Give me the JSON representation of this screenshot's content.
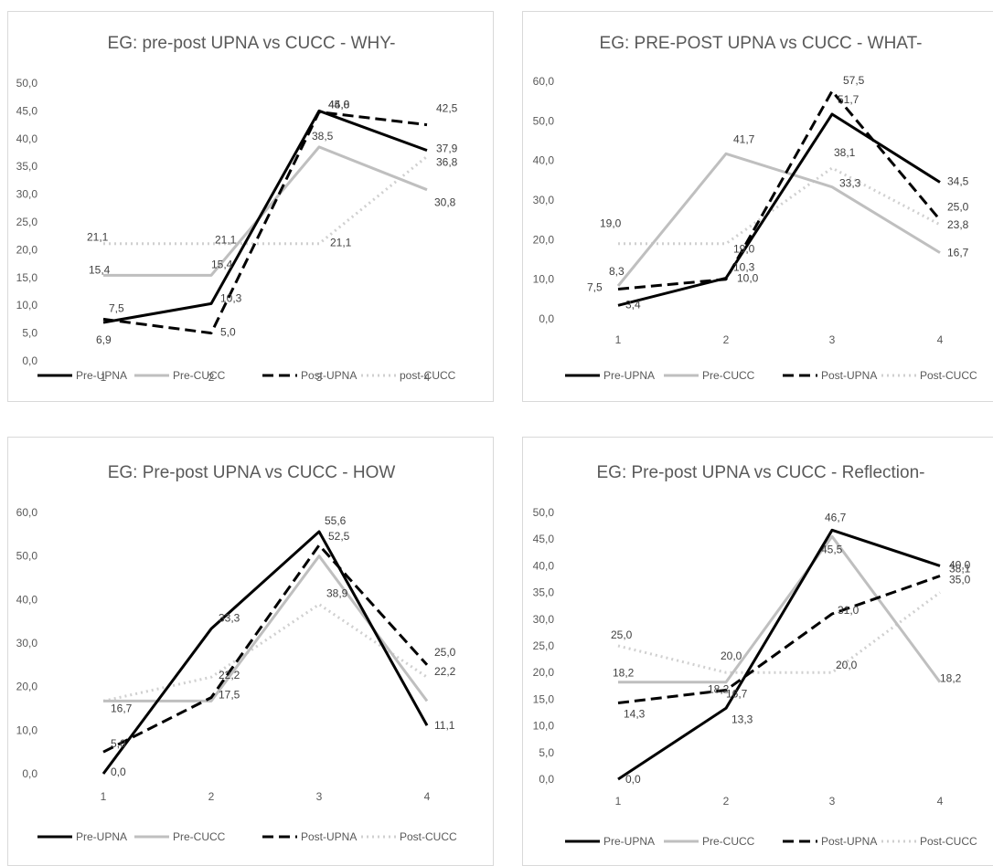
{
  "series_style": {
    "Pre-UPNA": {
      "color": "#000000",
      "dash": ""
    },
    "Pre-CUCC": {
      "color": "#bfbfbf",
      "dash": ""
    },
    "Post-UPNA": {
      "color": "#000000",
      "dash": "12 6"
    },
    "post-CUCC": {
      "color": "#d0d0d0",
      "dash": "2 4"
    },
    "Post-CUCC": {
      "color": "#d0d0d0",
      "dash": "2 4"
    }
  },
  "chart_data": [
    {
      "type": "line",
      "title": "EG: pre-post UPNA vs CUCC - WHY-",
      "categories": [
        "1",
        "2",
        "3",
        "4"
      ],
      "yticks": [
        "0,0",
        "5,0",
        "10,0",
        "15,0",
        "20,0",
        "25,0",
        "30,0",
        "35,0",
        "40,0",
        "45,0",
        "50,0"
      ],
      "ylim": [
        0,
        50
      ],
      "grid": false,
      "legend": "bottom",
      "series": [
        {
          "name": "Pre-UPNA",
          "values": [
            6.9,
            10.3,
            45.0,
            37.9
          ],
          "labels": [
            "6,9",
            "10,3",
            "45,0",
            "37,9"
          ]
        },
        {
          "name": "Pre-CUCC",
          "values": [
            15.4,
            15.4,
            38.5,
            30.8
          ],
          "labels": [
            "15,4",
            "15,4",
            "38,5",
            "30,8"
          ]
        },
        {
          "name": "Post-UPNA",
          "values": [
            7.5,
            5.0,
            44.8,
            42.5
          ],
          "labels": [
            "7,5",
            "5,0",
            "44,8",
            "42,5"
          ]
        },
        {
          "name": "post-CUCC",
          "values": [
            21.1,
            21.1,
            21.1,
            36.8
          ],
          "labels": [
            "21,1",
            "21,1",
            "21,1",
            "36,8"
          ]
        }
      ]
    },
    {
      "type": "line",
      "title": "EG: PRE-POST UPNA vs CUCC - WHAT-",
      "categories": [
        "1",
        "2",
        "3",
        "4"
      ],
      "yticks": [
        "0,0",
        "10,0",
        "20,0",
        "30,0",
        "40,0",
        "50,0",
        "60,0"
      ],
      "ylim": [
        0,
        60
      ],
      "grid": false,
      "legend": "bottom",
      "series": [
        {
          "name": "Pre-UPNA",
          "values": [
            3.4,
            10.3,
            51.7,
            34.5
          ],
          "labels": [
            "3,4",
            "10,3",
            "51,7",
            "34,5"
          ]
        },
        {
          "name": "Pre-CUCC",
          "values": [
            8.3,
            41.7,
            33.3,
            16.7
          ],
          "labels": [
            "8,3",
            "41,7",
            "33,3",
            "16,7"
          ]
        },
        {
          "name": "Post-UPNA",
          "values": [
            7.5,
            10.0,
            57.5,
            25.0
          ],
          "labels": [
            "7,5",
            "10,0",
            "57,5",
            "25,0"
          ]
        },
        {
          "name": "Post-CUCC",
          "values": [
            19.0,
            19.0,
            38.1,
            23.8
          ],
          "labels": [
            "19,0",
            "19,0",
            "38,1",
            "23,8"
          ]
        }
      ]
    },
    {
      "type": "line",
      "title": "EG: Pre-post UPNA vs CUCC  - HOW",
      "categories": [
        "1",
        "2",
        "3",
        "4"
      ],
      "yticks": [
        "0,0",
        "10,0",
        "20,0",
        "30,0",
        "40,0",
        "50,0",
        "60,0"
      ],
      "ylim": [
        0,
        60
      ],
      "grid": false,
      "legend": "bottom",
      "series": [
        {
          "name": "Pre-UPNA",
          "values": [
            0.0,
            33.3,
            55.6,
            11.1
          ],
          "labels": [
            "0,0",
            "33,3",
            "55,6",
            "11,1"
          ]
        },
        {
          "name": "Pre-CUCC",
          "values": [
            16.7,
            16.7,
            50.0,
            16.7
          ],
          "labels": [
            "16,7",
            "",
            "",
            ""
          ]
        },
        {
          "name": "Post-UPNA",
          "values": [
            5.0,
            17.5,
            52.5,
            25.0
          ],
          "labels": [
            "5,0",
            "17,5",
            "52,5",
            "25,0"
          ]
        },
        {
          "name": "Post-CUCC",
          "values": [
            16.7,
            22.2,
            38.9,
            22.2
          ],
          "labels": [
            "",
            "22,2",
            "38,9",
            "22,2"
          ]
        }
      ]
    },
    {
      "type": "line",
      "title": "EG: Pre-post UPNA vs CUCC - Reflection-",
      "categories": [
        "1",
        "2",
        "3",
        "4"
      ],
      "yticks": [
        "0,0",
        "5,0",
        "10,0",
        "15,0",
        "20,0",
        "25,0",
        "30,0",
        "35,0",
        "40,0",
        "45,0",
        "50,0"
      ],
      "ylim": [
        0,
        50
      ],
      "grid": false,
      "legend": "bottom",
      "series": [
        {
          "name": "Pre-UPNA",
          "values": [
            0.0,
            13.3,
            46.7,
            40.0
          ],
          "labels": [
            "0,0",
            "13,3",
            "46,7",
            "40,0"
          ]
        },
        {
          "name": "Pre-CUCC",
          "values": [
            18.2,
            18.2,
            45.5,
            18.2
          ],
          "labels": [
            "18,2",
            "18,2",
            "45,5",
            "18,2"
          ]
        },
        {
          "name": "Post-UPNA",
          "values": [
            14.3,
            16.7,
            31.0,
            38.1
          ],
          "labels": [
            "14,3",
            "16,7",
            "31,0",
            "38,1"
          ]
        },
        {
          "name": "Post-CUCC",
          "values": [
            25.0,
            20.0,
            20.0,
            35.0
          ],
          "labels": [
            "25,0",
            "20,0",
            "20,0",
            "35,0"
          ]
        }
      ]
    }
  ]
}
